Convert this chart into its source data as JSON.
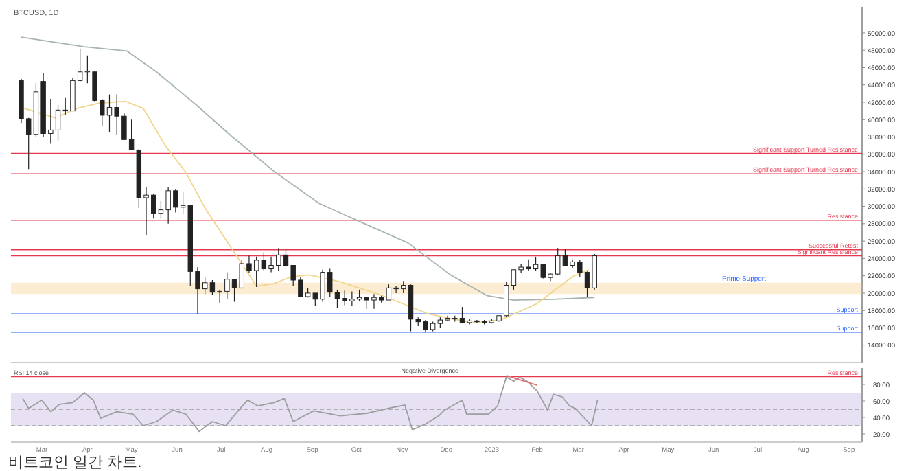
{
  "chart_data": [
    {
      "type": "candlestick",
      "title": "BTCUSD, 1D",
      "xlim": [
        "2022-02-08",
        "2023-09-10"
      ],
      "ylim": [
        12000,
        53000
      ],
      "yticks": [
        {
          "value": 14000,
          "label": "14000.00"
        },
        {
          "value": 16000,
          "label": "16000.00"
        },
        {
          "value": 18000,
          "label": "18000.00"
        },
        {
          "value": 20000,
          "label": "20000.00"
        },
        {
          "value": 22000,
          "label": "22000.00"
        },
        {
          "value": 24000,
          "label": "24000.00"
        },
        {
          "value": 26000,
          "label": "26000.00"
        },
        {
          "value": 28000,
          "label": "28000.00"
        },
        {
          "value": 30000,
          "label": "30000.00"
        },
        {
          "value": 32000,
          "label": "32000.00"
        },
        {
          "value": 34000,
          "label": "34000.00"
        },
        {
          "value": 36000,
          "label": "36000.00"
        },
        {
          "value": 38000,
          "label": "38000.00"
        },
        {
          "value": 40000,
          "label": "40000.00"
        },
        {
          "value": 42000,
          "label": "42000.00"
        },
        {
          "value": 44000,
          "label": "44000.00"
        },
        {
          "value": 46000,
          "label": "46000.00"
        },
        {
          "value": 48000,
          "label": "48000.00"
        },
        {
          "value": 50000,
          "label": "50000.00"
        }
      ],
      "tick_labels": "y",
      "x": [
        "2022-02-15",
        "2022-02-20",
        "2022-02-25",
        "2022-03-02",
        "2022-03-07",
        "2022-03-12",
        "2022-03-17",
        "2022-03-22",
        "2022-03-27",
        "2022-04-01",
        "2022-04-06",
        "2022-04-11",
        "2022-04-16",
        "2022-04-21",
        "2022-04-26",
        "2022-05-01",
        "2022-05-06",
        "2022-05-11",
        "2022-05-16",
        "2022-05-21",
        "2022-05-26",
        "2022-05-31",
        "2022-06-05",
        "2022-06-10",
        "2022-06-15",
        "2022-06-20",
        "2022-06-25",
        "2022-06-30",
        "2022-07-05",
        "2022-07-10",
        "2022-07-15",
        "2022-07-20",
        "2022-07-25",
        "2022-07-30",
        "2022-08-04",
        "2022-08-09",
        "2022-08-14",
        "2022-08-19",
        "2022-08-24",
        "2022-08-29",
        "2022-09-03",
        "2022-09-08",
        "2022-09-13",
        "2022-09-18",
        "2022-09-23",
        "2022-09-28",
        "2022-10-03",
        "2022-10-08",
        "2022-10-13",
        "2022-10-18",
        "2022-10-23",
        "2022-10-28",
        "2022-11-02",
        "2022-11-07",
        "2022-11-12",
        "2022-11-17",
        "2022-11-22",
        "2022-11-27",
        "2022-12-02",
        "2022-12-07",
        "2022-12-12",
        "2022-12-17",
        "2022-12-22",
        "2022-12-27",
        "2023-01-01",
        "2023-01-06",
        "2023-01-11",
        "2023-01-16",
        "2023-01-21",
        "2023-01-26",
        "2023-01-31",
        "2023-02-05",
        "2023-02-10",
        "2023-02-15",
        "2023-02-20",
        "2023-02-25",
        "2023-03-02",
        "2023-03-07",
        "2023-03-12"
      ],
      "ohlc": [
        [
          44500,
          44700,
          39600,
          40100
        ],
        [
          40100,
          40200,
          34300,
          38300
        ],
        [
          38300,
          44200,
          38000,
          43200
        ],
        [
          44400,
          45400,
          38000,
          38400
        ],
        [
          38400,
          42400,
          37200,
          38800
        ],
        [
          38800,
          41700,
          37600,
          41100
        ],
        [
          41100,
          42500,
          40500,
          41000
        ],
        [
          41000,
          44800,
          41000,
          44500
        ],
        [
          44500,
          48200,
          44400,
          45500
        ],
        [
          45500,
          47400,
          44200,
          45600
        ],
        [
          45500,
          45500,
          42100,
          42200
        ],
        [
          42200,
          42400,
          39200,
          40500
        ],
        [
          40500,
          42900,
          38600,
          41400
        ],
        [
          41400,
          42900,
          38200,
          40400
        ],
        [
          40400,
          40800,
          37700,
          37700
        ],
        [
          37700,
          40000,
          36500,
          36500
        ],
        [
          36500,
          36600,
          29800,
          31000
        ],
        [
          31000,
          32200,
          26700,
          31300
        ],
        [
          31300,
          31400,
          28600,
          29200
        ],
        [
          29200,
          30600,
          28600,
          29600
        ],
        [
          29600,
          32200,
          28000,
          31800
        ],
        [
          31800,
          32000,
          29300,
          29900
        ],
        [
          29900,
          31700,
          29100,
          30100
        ],
        [
          30100,
          30200,
          20800,
          22500
        ],
        [
          22500,
          23000,
          17600,
          20500
        ],
        [
          20500,
          21800,
          19900,
          21200
        ],
        [
          21200,
          21500,
          19800,
          20100
        ],
        [
          20100,
          20400,
          18800,
          20200
        ],
        [
          20200,
          22400,
          19300,
          21600
        ],
        [
          21600,
          21600,
          19000,
          20600
        ],
        [
          20600,
          23800,
          20500,
          23400
        ],
        [
          23400,
          24300,
          22300,
          22600
        ],
        [
          22600,
          24200,
          20700,
          23800
        ],
        [
          23800,
          24700,
          22600,
          22800
        ],
        [
          22800,
          24200,
          22400,
          23200
        ],
        [
          23200,
          25200,
          22600,
          24400
        ],
        [
          24400,
          25000,
          23200,
          23200
        ],
        [
          23200,
          23200,
          20800,
          21500
        ],
        [
          21500,
          21900,
          19600,
          19600
        ],
        [
          19600,
          20600,
          19500,
          20000
        ],
        [
          20000,
          20000,
          18500,
          19300
        ],
        [
          19300,
          22700,
          19000,
          22400
        ],
        [
          22400,
          22800,
          19600,
          20100
        ],
        [
          20100,
          20400,
          18300,
          19400
        ],
        [
          19400,
          20300,
          18600,
          19100
        ],
        [
          19100,
          20200,
          18500,
          19300
        ],
        [
          19300,
          20400,
          19100,
          19500
        ],
        [
          19500,
          19600,
          18200,
          19200
        ],
        [
          19200,
          19900,
          18200,
          19500
        ],
        [
          19500,
          19700,
          18900,
          19200
        ],
        [
          19200,
          21000,
          19200,
          20600
        ],
        [
          20600,
          20800,
          20000,
          20500
        ],
        [
          20500,
          21400,
          20000,
          20900
        ],
        [
          20900,
          21000,
          15600,
          17000
        ],
        [
          17000,
          17200,
          16200,
          16700
        ],
        [
          16700,
          16900,
          15500,
          15800
        ],
        [
          15800,
          16700,
          15600,
          16500
        ],
        [
          16500,
          17200,
          16000,
          16900
        ],
        [
          16900,
          17400,
          16800,
          17100
        ],
        [
          17100,
          17400,
          16700,
          17100
        ],
        [
          17100,
          18400,
          16500,
          16600
        ],
        [
          16600,
          17000,
          16400,
          16800
        ],
        [
          16800,
          16900,
          16600,
          16700
        ],
        [
          16700,
          16900,
          16400,
          16600
        ],
        [
          16600,
          17000,
          16500,
          16800
        ],
        [
          16800,
          17400,
          16700,
          17400
        ],
        [
          17400,
          21300,
          17300,
          20900
        ],
        [
          20900,
          22700,
          20400,
          22700
        ],
        [
          22700,
          23400,
          22300,
          23000
        ],
        [
          23000,
          23900,
          22600,
          22800
        ],
        [
          22800,
          24200,
          22600,
          23300
        ],
        [
          23300,
          23400,
          21700,
          21800
        ],
        [
          21800,
          22300,
          21400,
          22200
        ],
        [
          22200,
          25200,
          22100,
          24300
        ],
        [
          24300,
          25100,
          23200,
          23200
        ],
        [
          23200,
          23900,
          22900,
          23600
        ],
        [
          23600,
          23800,
          21900,
          22400
        ],
        [
          22400,
          22500,
          19600,
          20600
        ],
        [
          20600,
          24500,
          20400,
          24300
        ]
      ],
      "series": [
        {
          "type": "line",
          "color": "#a7b5ae",
          "x": [
            "2022-02-15",
            "2022-03-30",
            "2022-04-28",
            "2022-05-18",
            "2022-06-14",
            "2022-07-08",
            "2022-08-07",
            "2022-09-06",
            "2022-11-05",
            "2022-12-04",
            "2022-12-29",
            "2023-01-16",
            "2023-02-12",
            "2023-03-12"
          ],
          "values": [
            49500,
            48400,
            47900,
            45500,
            41700,
            38100,
            33900,
            30300,
            25800,
            22100,
            19700,
            19200,
            19300,
            19500
          ]
        },
        {
          "type": "line",
          "color": "#f0d58a",
          "x": [
            "2022-02-17",
            "2022-03-10",
            "2022-03-25",
            "2022-04-09",
            "2022-04-27",
            "2022-05-09",
            "2022-05-24",
            "2022-06-07",
            "2022-06-20",
            "2022-07-25",
            "2022-08-06",
            "2022-08-18",
            "2022-08-30",
            "2022-09-20",
            "2022-10-19",
            "2022-11-19",
            "2022-12-18",
            "2023-01-07",
            "2023-02-01",
            "2023-02-25",
            "2023-03-08"
          ],
          "values": [
            41300,
            40200,
            41300,
            41900,
            42100,
            41300,
            37000,
            33900,
            29800,
            20800,
            21100,
            21900,
            22100,
            21300,
            19700,
            17600,
            16600,
            16900,
            18800,
            21900,
            22700
          ]
        }
      ],
      "ref_lines": [
        {
          "axis": "y",
          "value": 36100,
          "label": "Significant Support Turned Resistance",
          "color": "#e53950"
        },
        {
          "axis": "y",
          "value": 33760,
          "label": "Significant Support Turned Resistance",
          "color": "#e53950"
        },
        {
          "axis": "y",
          "value": 28400,
          "label": "Resistance",
          "color": "#e53950"
        },
        {
          "axis": "y",
          "value": 25000,
          "label": "Successful Retest",
          "color": "#e53950"
        },
        {
          "axis": "y",
          "value": 24300,
          "label": "Significant Resistance",
          "color": "#e53950"
        },
        {
          "axis": "y",
          "value": 17600,
          "label": "Support",
          "color": "#2962ff"
        },
        {
          "axis": "y",
          "value": 15500,
          "label": "Support",
          "color": "#2962ff"
        }
      ],
      "bands": [
        {
          "axis": "y",
          "from": 19900,
          "to": 21200,
          "label": "Prime Support",
          "color": "#f5c26b"
        }
      ]
    },
    {
      "type": "line",
      "title": "RSI 14 close",
      "xlim": [
        "2022-02-08",
        "2023-09-10"
      ],
      "ylim": [
        10,
        100
      ],
      "xticks": [
        {
          "value": "2022-03-01",
          "label": "Mar"
        },
        {
          "value": "2022-04-01",
          "label": "Apr"
        },
        {
          "value": "2022-05-01",
          "label": "May"
        },
        {
          "value": "2022-06-01",
          "label": "Jun"
        },
        {
          "value": "2022-07-01",
          "label": "Jul"
        },
        {
          "value": "2022-08-01",
          "label": "Aug"
        },
        {
          "value": "2022-09-01",
          "label": "Sep"
        },
        {
          "value": "2022-10-01",
          "label": "Oct"
        },
        {
          "value": "2022-11-01",
          "label": "Nov"
        },
        {
          "value": "2022-12-01",
          "label": "Dec"
        },
        {
          "value": "2023-01-01",
          "label": "2023"
        },
        {
          "value": "2023-02-01",
          "label": "Feb"
        },
        {
          "value": "2023-03-01",
          "label": "Mar"
        },
        {
          "value": "2023-04-01",
          "label": "Apr"
        },
        {
          "value": "2023-05-01",
          "label": "May"
        },
        {
          "value": "2023-06-01",
          "label": "Jun"
        },
        {
          "value": "2023-07-01",
          "label": "Jul"
        },
        {
          "value": "2023-08-01",
          "label": "Aug"
        },
        {
          "value": "2023-09-01",
          "label": "Sep"
        }
      ],
      "yticks": [
        {
          "value": 20,
          "label": "20.00"
        },
        {
          "value": 40,
          "label": "40.00"
        },
        {
          "value": 60,
          "label": "60.00"
        },
        {
          "value": 80,
          "label": "80.00"
        }
      ],
      "series": [
        {
          "type": "line",
          "color": "#9e9e9e",
          "x": [
            "2022-02-16",
            "2022-02-20",
            "2022-03-01",
            "2022-03-07",
            "2022-03-13",
            "2022-03-22",
            "2022-03-30",
            "2022-04-05",
            "2022-04-10",
            "2022-04-21",
            "2022-05-02",
            "2022-05-09",
            "2022-05-18",
            "2022-05-29",
            "2022-06-07",
            "2022-06-16",
            "2022-06-25",
            "2022-07-04",
            "2022-07-13",
            "2022-07-19",
            "2022-07-26",
            "2022-08-06",
            "2022-08-13",
            "2022-08-19",
            "2022-09-02",
            "2022-09-20",
            "2022-10-08",
            "2022-10-25",
            "2022-11-03",
            "2022-11-08",
            "2022-11-17",
            "2022-11-26",
            "2022-11-30",
            "2022-12-12",
            "2022-12-15",
            "2022-12-30",
            "2023-01-05",
            "2023-01-11",
            "2023-01-16",
            "2023-01-20",
            "2023-01-25",
            "2023-02-01",
            "2023-02-08",
            "2023-02-12",
            "2023-02-18",
            "2023-02-23",
            "2023-02-27",
            "2023-03-10",
            "2023-03-14"
          ],
          "values": [
            63,
            51,
            61,
            47,
            56,
            58,
            70,
            61,
            39,
            47,
            44,
            30,
            35,
            49,
            44,
            23,
            35,
            30,
            49,
            61,
            54,
            58,
            63,
            35,
            48,
            42,
            45,
            52,
            55,
            25,
            32,
            42,
            49,
            61,
            44,
            44,
            54,
            89,
            84,
            89,
            84,
            72,
            49,
            68,
            65,
            54,
            51,
            30,
            61
          ]
        },
        {
          "type": "line",
          "color": "#e57373",
          "x": [
            "2023-01-11",
            "2023-02-01"
          ],
          "values": [
            91,
            79
          ]
        }
      ],
      "ref_lines": [
        {
          "axis": "y",
          "value": 89.5,
          "label": "Resistance",
          "color": "#e53950"
        },
        {
          "axis": "y",
          "value": 50,
          "color": "#9e9e9e",
          "line_style": "dashed"
        },
        {
          "axis": "y",
          "value": 30,
          "color": "#9e9e9e",
          "line_style": "dashed"
        }
      ],
      "bands": [
        {
          "axis": "y",
          "from": 30,
          "to": 70,
          "color": "#b39ddb"
        }
      ],
      "annotations": [
        {
          "text": "Negative Divergence",
          "x": "2022-11-20",
          "y": 91
        },
        "비트코인 일간 차트."
      ]
    }
  ]
}
